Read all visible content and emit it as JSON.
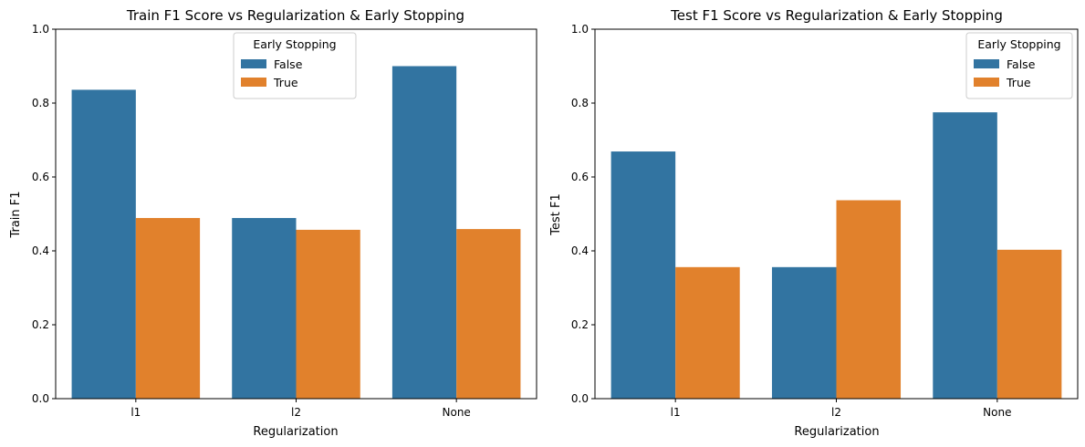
{
  "chart_data": [
    {
      "type": "bar",
      "title": "Train F1 Score vs Regularization & Early Stopping",
      "xlabel": "Regularization",
      "ylabel": "Train F1",
      "categories": [
        "l1",
        "l2",
        "None"
      ],
      "ylim": [
        0,
        1.0
      ],
      "yticks": [
        "0.0",
        "0.2",
        "0.4",
        "0.6",
        "0.8",
        "1.0"
      ],
      "legend_title": "Early Stopping",
      "legend_position": "top-center",
      "series": [
        {
          "name": "False",
          "color": "#3274a1",
          "values": [
            0.836,
            0.489,
            0.9
          ]
        },
        {
          "name": "True",
          "color": "#e1812c",
          "values": [
            0.489,
            0.457,
            0.459
          ]
        }
      ]
    },
    {
      "type": "bar",
      "title": "Test F1 Score vs Regularization & Early Stopping",
      "xlabel": "Regularization",
      "ylabel": "Test F1",
      "categories": [
        "l1",
        "l2",
        "None"
      ],
      "ylim": [
        0,
        1.0
      ],
      "yticks": [
        "0.0",
        "0.2",
        "0.4",
        "0.6",
        "0.8",
        "1.0"
      ],
      "legend_title": "Early Stopping",
      "legend_position": "top-right",
      "series": [
        {
          "name": "False",
          "color": "#3274a1",
          "values": [
            0.669,
            0.356,
            0.775
          ]
        },
        {
          "name": "True",
          "color": "#e1812c",
          "values": [
            0.356,
            0.537,
            0.403
          ]
        }
      ]
    }
  ]
}
